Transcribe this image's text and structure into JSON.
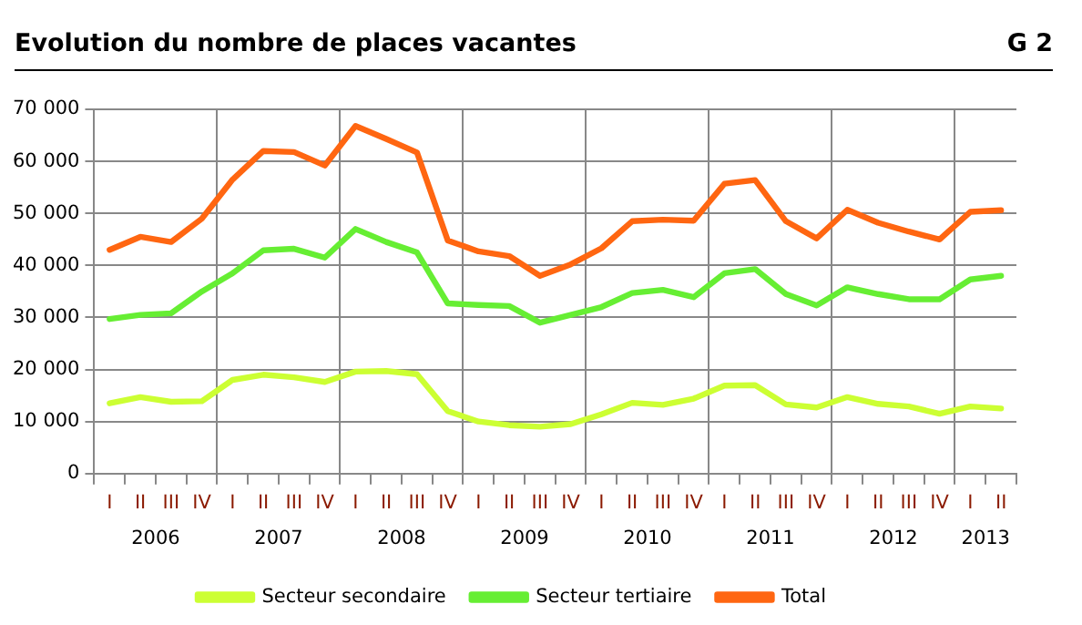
{
  "chart_data": {
    "type": "line",
    "title": "Evolution du nombre de places vacantes",
    "categories": [
      "I",
      "II",
      "III",
      "IV",
      "I",
      "II",
      "III",
      "IV",
      "I",
      "II",
      "III",
      "IV",
      "I",
      "II",
      "III",
      "IV",
      "I",
      "II",
      "III",
      "IV",
      "I",
      "II",
      "III",
      "IV",
      "I",
      "II",
      "III",
      "IV",
      "I",
      "II"
    ],
    "series": [
      {
        "name": "Secteur secondaire",
        "color": "#ccff33",
        "values": [
          13500,
          14700,
          13800,
          13900,
          18000,
          19000,
          18500,
          17600,
          19600,
          19700,
          19100,
          12000,
          10000,
          9300,
          9000,
          9500,
          11400,
          13600,
          13200,
          14400,
          16900,
          17000,
          13300,
          12700,
          14700,
          13400,
          12900,
          11500,
          12900,
          12500
        ]
      },
      {
        "name": "Secteur tertiaire",
        "color": "#66ee33",
        "values": [
          29700,
          30500,
          30800,
          35000,
          38500,
          42900,
          43200,
          41500,
          47000,
          44500,
          42500,
          32700,
          32400,
          32200,
          29000,
          30500,
          32000,
          34700,
          35300,
          33900,
          38500,
          39300,
          34500,
          32300,
          35800,
          34500,
          33500,
          33500,
          37300,
          38000
        ]
      },
      {
        "name": "Total",
        "color": "#ff6611",
        "values": [
          43000,
          45500,
          44500,
          49000,
          56500,
          62000,
          61800,
          59200,
          66800,
          64300,
          61700,
          44800,
          42700,
          41800,
          38000,
          40200,
          43300,
          48500,
          48800,
          48600,
          55700,
          56400,
          48500,
          45200,
          50700,
          48200,
          46500,
          45000,
          50300,
          50600
        ]
      }
    ],
    "ylim": [
      0,
      70000
    ],
    "yticks": [
      {
        "value": 0,
        "label": "0"
      },
      {
        "value": 10000,
        "label": "10 000"
      },
      {
        "value": 20000,
        "label": "20 000"
      },
      {
        "value": 30000,
        "label": "30 000"
      },
      {
        "value": 40000,
        "label": "40 000"
      },
      {
        "value": 50000,
        "label": "50 000"
      },
      {
        "value": 60000,
        "label": "60 000"
      },
      {
        "value": 70000,
        "label": "70 000"
      }
    ],
    "grid": true,
    "legend": "bottom",
    "marker": "none",
    "line_style": "solid",
    "annotations": [
      "G 2",
      "2006",
      "2007",
      "2008",
      "2009",
      "2010",
      "2011",
      "2012",
      "2013"
    ]
  }
}
